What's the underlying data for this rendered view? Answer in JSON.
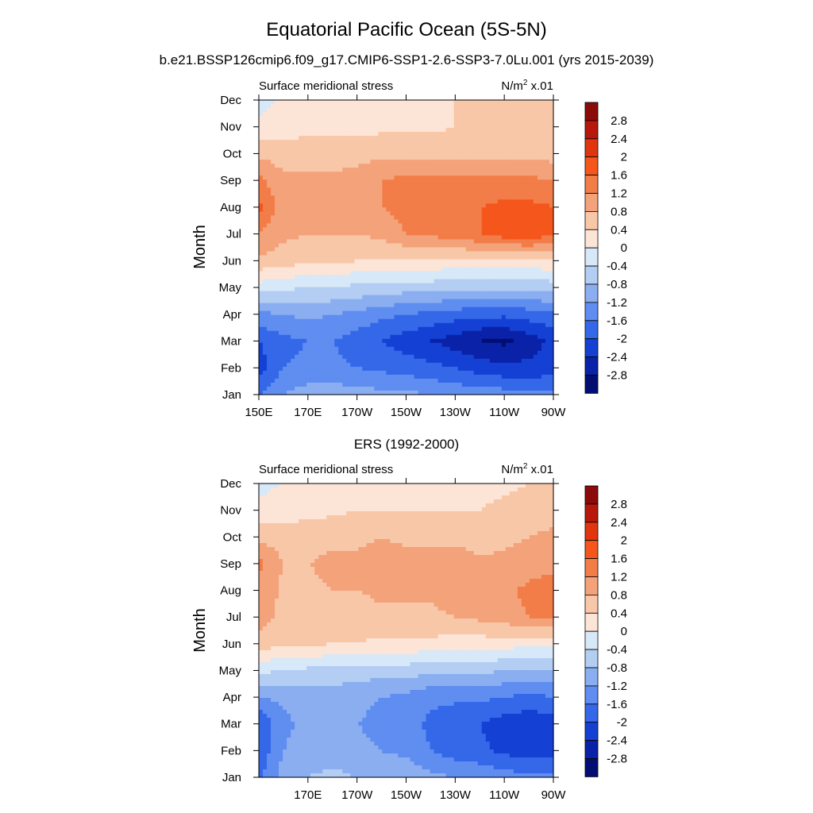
{
  "title": "Equatorial Pacific Ocean (5S-5N)",
  "subtitle": "b.e21.BSSP126cmip6.f09_g17.CMIP6-SSP1-2.6-SSP3-7.0Lu.001 (yrs 2015-2039)",
  "colorbar": {
    "labels": [
      "2.8",
      "2.4",
      "2",
      "1.6",
      "1.2",
      "0.8",
      "0.4",
      "0",
      "-0.4",
      "-0.8",
      "-1.2",
      "-1.6",
      "-2",
      "-2.4",
      "-2.8"
    ],
    "colors": [
      "#8b0a0a",
      "#b8180b",
      "#e0350e",
      "#f5561c",
      "#f27d48",
      "#f4a27a",
      "#f8c7a8",
      "#fce5d6",
      "#d7e8f8",
      "#b3cdf3",
      "#8aaef0",
      "#5f8df0",
      "#3468e8",
      "#1441d4",
      "#0a22a8",
      "#020e72"
    ]
  },
  "chart_data": [
    {
      "type": "heatmap",
      "title": "",
      "panel_left": "Surface meridional stress",
      "panel_right_base": "N/m",
      "panel_right_sup": "2",
      "panel_right_tail": " x.01",
      "xlabel": "",
      "ylabel": "Month",
      "x_ticks": [
        "150E",
        "170E",
        "170W",
        "150W",
        "130W",
        "110W",
        "90W"
      ],
      "y_ticks": [
        "Jan",
        "Feb",
        "Mar",
        "Apr",
        "May",
        "Jun",
        "Jul",
        "Aug",
        "Sep",
        "Oct",
        "Nov",
        "Dec"
      ],
      "x_range_deg_east": [
        150,
        270
      ],
      "values": [
        [
          -1.6,
          -1.2,
          -1.0,
          -1.0,
          -1.0,
          -1.1,
          -1.1,
          -1.2,
          -1.3,
          -1.4,
          -1.4,
          -1.5,
          -1.5
        ],
        [
          -2.2,
          -1.6,
          -1.5,
          -1.5,
          -1.6,
          -1.7,
          -1.8,
          -1.9,
          -2.0,
          -2.2,
          -2.3,
          -2.3,
          -2.2
        ],
        [
          -2.0,
          -1.7,
          -1.6,
          -1.6,
          -1.8,
          -2.0,
          -2.2,
          -2.4,
          -2.6,
          -2.8,
          -2.9,
          -2.6,
          -2.3
        ],
        [
          -1.3,
          -1.2,
          -1.1,
          -1.2,
          -1.3,
          -1.5,
          -1.6,
          -1.7,
          -1.8,
          -1.9,
          -1.9,
          -1.8,
          -1.7
        ],
        [
          -0.2,
          -0.3,
          -0.4,
          -0.4,
          -0.5,
          -0.5,
          -0.6,
          -0.6,
          -0.7,
          -0.7,
          -0.7,
          -0.7,
          -0.6
        ],
        [
          0.7,
          0.6,
          0.5,
          0.5,
          0.4,
          0.4,
          0.3,
          0.3,
          0.3,
          0.3,
          0.3,
          0.3,
          0.3
        ],
        [
          1.2,
          0.9,
          0.8,
          0.8,
          0.8,
          0.9,
          1.2,
          1.3,
          1.4,
          1.6,
          1.8,
          1.9,
          1.7
        ],
        [
          1.7,
          1.0,
          0.9,
          0.9,
          1.0,
          1.2,
          1.4,
          1.5,
          1.5,
          1.6,
          1.7,
          1.7,
          1.6
        ],
        [
          1.3,
          0.9,
          0.9,
          0.9,
          1.0,
          1.2,
          1.3,
          1.3,
          1.3,
          1.3,
          1.3,
          1.3,
          1.2
        ],
        [
          0.7,
          0.6,
          0.6,
          0.6,
          0.6,
          0.7,
          0.7,
          0.7,
          0.7,
          0.7,
          0.7,
          0.7,
          0.6
        ],
        [
          0.1,
          0.2,
          0.3,
          0.3,
          0.3,
          0.3,
          0.3,
          0.3,
          0.4,
          0.4,
          0.4,
          0.4,
          0.4
        ],
        [
          -0.2,
          0.1,
          0.2,
          0.2,
          0.2,
          0.2,
          0.3,
          0.4,
          0.4,
          0.5,
          0.5,
          0.5,
          0.5
        ]
      ]
    },
    {
      "type": "heatmap",
      "title": "ERS (1992-2000)",
      "panel_left": "Surface meridional stress",
      "panel_right_base": "N/m",
      "panel_right_sup": "2",
      "panel_right_tail": " x.01",
      "xlabel": "",
      "ylabel": "Month",
      "x_ticks": [
        "170E",
        "170W",
        "150W",
        "130W",
        "110W",
        "90W"
      ],
      "y_ticks": [
        "Jan",
        "Feb",
        "Mar",
        "Apr",
        "May",
        "Jun",
        "Jul",
        "Aug",
        "Sep",
        "Oct",
        "Nov",
        "Dec"
      ],
      "x_range_deg_east": [
        150,
        270
      ],
      "values": [
        [
          -1.7,
          -1.0,
          -0.8,
          -0.7,
          -0.8,
          -0.9,
          -0.9,
          -1.1,
          -1.2,
          -1.3,
          -1.4,
          -1.5,
          -1.5
        ],
        [
          -1.9,
          -1.2,
          -1.0,
          -1.0,
          -1.1,
          -1.2,
          -1.3,
          -1.6,
          -1.8,
          -1.9,
          -2.1,
          -2.2,
          -2.2
        ],
        [
          -2.0,
          -1.3,
          -1.1,
          -1.1,
          -1.2,
          -1.3,
          -1.4,
          -1.7,
          -1.9,
          -2.0,
          -2.2,
          -2.3,
          -2.2
        ],
        [
          -1.2,
          -1.1,
          -1.0,
          -1.0,
          -1.1,
          -1.2,
          -1.3,
          -1.5,
          -1.5,
          -1.5,
          -1.6,
          -1.7,
          -1.6
        ],
        [
          -0.3,
          -0.4,
          -0.5,
          -0.5,
          -0.6,
          -0.6,
          -0.6,
          -0.7,
          -0.7,
          -0.7,
          -0.8,
          -0.8,
          -0.8
        ],
        [
          0.6,
          0.5,
          0.5,
          0.4,
          0.4,
          0.3,
          0.3,
          0.3,
          0.2,
          0.2,
          0.2,
          0.1,
          0.1
        ],
        [
          1.0,
          0.7,
          0.6,
          0.6,
          0.6,
          0.7,
          0.7,
          0.7,
          0.8,
          0.9,
          1.0,
          1.2,
          1.2
        ],
        [
          1.1,
          0.7,
          0.7,
          0.8,
          0.8,
          0.9,
          0.9,
          0.9,
          1.0,
          1.0,
          1.1,
          1.3,
          1.4
        ],
        [
          1.3,
          0.8,
          0.8,
          0.9,
          0.9,
          1.0,
          1.0,
          1.0,
          1.0,
          0.9,
          0.9,
          1.0,
          1.1
        ],
        [
          0.7,
          0.6,
          0.6,
          0.7,
          0.7,
          0.8,
          0.7,
          0.7,
          0.7,
          0.6,
          0.7,
          0.8,
          0.9
        ],
        [
          0.1,
          0.2,
          0.3,
          0.3,
          0.4,
          0.4,
          0.4,
          0.4,
          0.4,
          0.4,
          0.5,
          0.6,
          0.6
        ],
        [
          -0.1,
          0.0,
          0.1,
          0.1,
          0.2,
          0.2,
          0.2,
          0.2,
          0.3,
          0.3,
          0.3,
          0.4,
          0.4
        ]
      ]
    }
  ]
}
